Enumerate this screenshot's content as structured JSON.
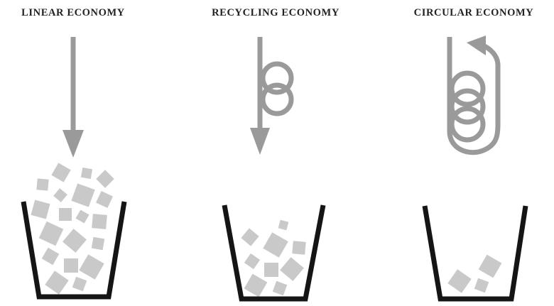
{
  "columns": [
    {
      "title": "LINEAR ECONOMY"
    },
    {
      "title": "RECYCLING ECONOMY"
    },
    {
      "title": "CIRCULAR ECONOMY"
    }
  ]
}
